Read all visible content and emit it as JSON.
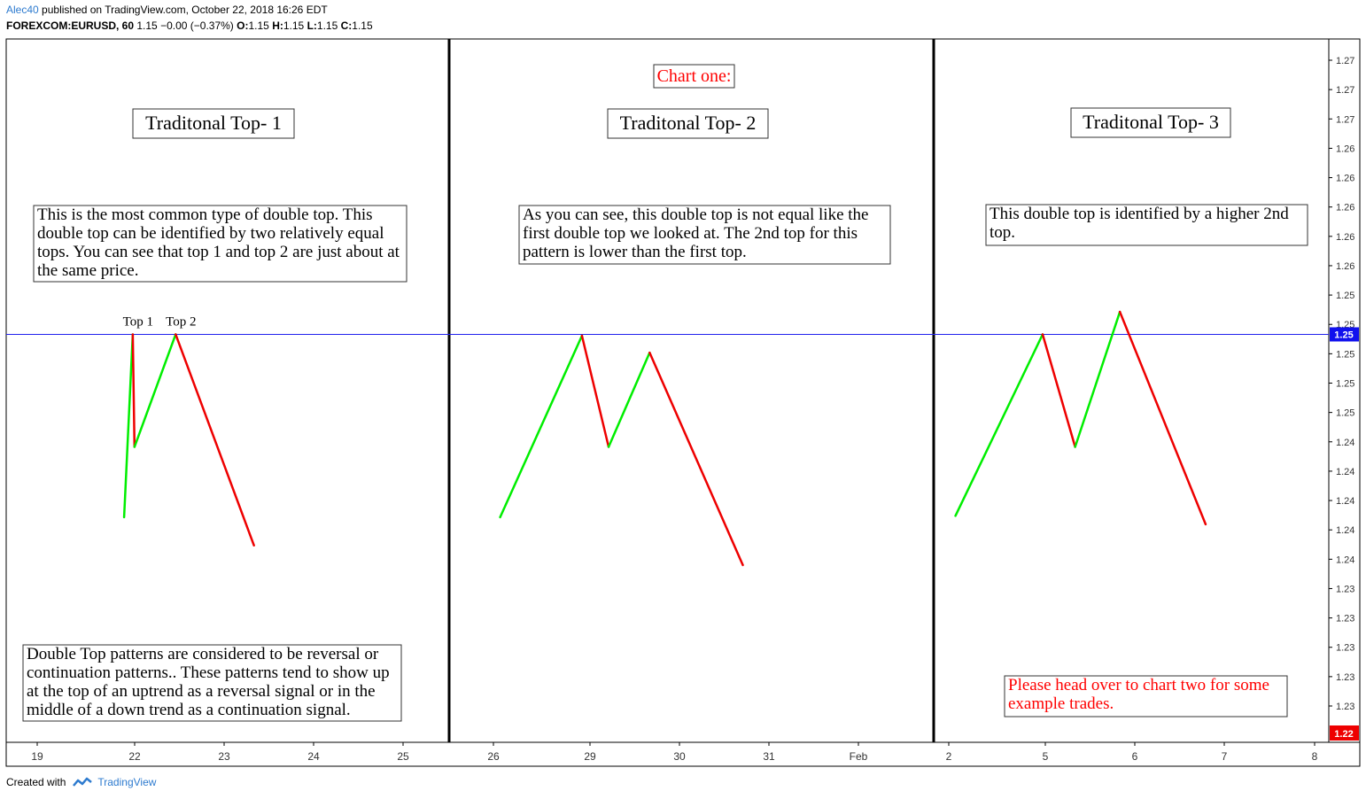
{
  "header": {
    "author": "Alec40",
    "published_text": "published on TradingView.com, October 22, 2018 16:26 EDT",
    "symbol": "FOREXCOM:EURUSD, 60",
    "change": "1.15 −0.00 (−0.37%)",
    "o_label": "O:",
    "o_value": "1.15",
    "h_label": "H:",
    "h_value": "1.15",
    "l_label": "L:",
    "l_value": "1.15",
    "c_label": "C:",
    "c_value": "1.15"
  },
  "footer": {
    "created_with": "Created with",
    "brand": "TradingView"
  },
  "colors": {
    "up": "#00ee00",
    "down": "#ee0000",
    "hline": "#2222ee",
    "red_text": "#ff0000",
    "price_badge_blue": "#1111ee",
    "price_badge_red": "#ee0000"
  },
  "chart_data": {
    "type": "line",
    "x_ticks": [
      "19",
      "22",
      "23",
      "24",
      "25",
      "26",
      "29",
      "30",
      "31",
      "Feb",
      "2",
      "5",
      "6",
      "7",
      "8"
    ],
    "y_ticks": [
      "1.27",
      "1.27",
      "1.27",
      "1.26",
      "1.26",
      "1.26",
      "1.26",
      "1.26",
      "1.25",
      "1.25",
      "1.25",
      "1.25",
      "1.25",
      "1.24",
      "1.24",
      "1.24",
      "1.24",
      "1.24",
      "1.23",
      "1.23",
      "1.23",
      "1.23",
      "1.23"
    ],
    "ylim": [
      1.2205,
      1.2705
    ],
    "horizontal_line": {
      "value": 1.2495,
      "label": "1.25"
    },
    "last_price_label": "1.22",
    "panels": [
      {
        "title": "Traditonal Top- 1",
        "points": [
          {
            "x": "Jan 19 17:00",
            "y": 1.2365,
            "color": "up"
          },
          {
            "x": "Jan 22 00:00",
            "y": 1.2495,
            "color": "down"
          },
          {
            "x": "Jan 22 11:00",
            "y": 1.2415,
            "color": "up"
          },
          {
            "x": "Jan 22 23:00",
            "y": 1.2495,
            "color": "down"
          },
          {
            "x": "Jan 23 20:00",
            "y": 1.2345
          }
        ],
        "labels": [
          "Top 1",
          "Top 2"
        ]
      },
      {
        "title": "Traditonal Top- 2",
        "points": [
          {
            "x": "Jan 26 17:00",
            "y": 1.2365,
            "color": "up"
          },
          {
            "x": "Jan 29 06:00",
            "y": 1.2494,
            "color": "down"
          },
          {
            "x": "Jan 29 17:00",
            "y": 1.2415,
            "color": "up"
          },
          {
            "x": "Jan 30 04:00",
            "y": 1.2482,
            "color": "down"
          },
          {
            "x": "Jan 31 05:00",
            "y": 1.2331
          }
        ]
      },
      {
        "title": "Traditonal Top- 3",
        "points": [
          {
            "x": "Feb 2 17:00",
            "y": 1.2366,
            "color": "up"
          },
          {
            "x": "Feb 5 10:00",
            "y": 1.2495,
            "color": "down"
          },
          {
            "x": "Feb 5 20:00",
            "y": 1.2415,
            "color": "up"
          },
          {
            "x": "Feb 6 08:00",
            "y": 1.2511,
            "color": "down"
          },
          {
            "x": "Feb 7 07:00",
            "y": 1.236
          }
        ]
      }
    ],
    "annotations": {
      "chart_one": "Chart one:",
      "desc1": "This is the most common type of double top. This double top can be identified by two relatively equal tops. You can see that top 1 and top 2 are just about at the same price.",
      "desc2": "As you can see, this double top is not equal like the first double top we looked at. The 2nd top for this pattern is lower than the first top.",
      "desc3": "This double top is identified by a higher 2nd top.",
      "desc4": "Double Top patterns are considered to be reversal or continuation patterns.. These patterns tend to show up at the top of an uptrend as a reversal signal or in the middle of a down trend as a continuation signal.",
      "desc5": "Please head over to chart two for some example trades."
    }
  }
}
